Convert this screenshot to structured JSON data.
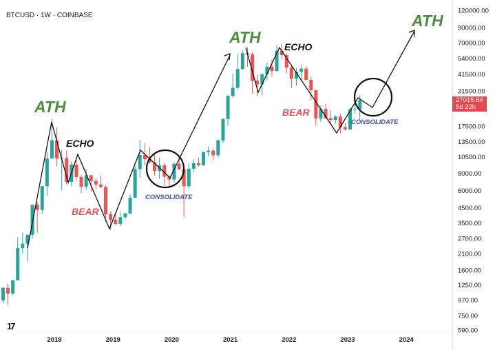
{
  "header": {
    "symbol_title": "BTCUSD · 1W · COINBASE"
  },
  "price_tag": {
    "price": "27015.64",
    "countdown": "5d 22h",
    "color": "#e2484f"
  },
  "chart_data": {
    "type": "candlestick",
    "title": "BTCUSD · 1W · COINBASE",
    "y_scale": "log",
    "ylim": [
      560,
      120000
    ],
    "xlim": [
      "2017-02",
      "2024-08"
    ],
    "grid": false,
    "y_ticks": [
      "120000.00",
      "90000.00",
      "70000.00",
      "54000.00",
      "41500.00",
      "31500.00",
      "17500.00",
      "13500.00",
      "10500.00",
      "8000.00",
      "6000.00",
      "4500.00",
      "3500.00",
      "2700.00",
      "2100.00",
      "1600.00",
      "1250.00",
      "970.00",
      "750.00",
      "590.00"
    ],
    "x_ticks": [
      "2018",
      "2019",
      "2020",
      "2021",
      "2022",
      "2023",
      "2024"
    ],
    "colors": {
      "up": "#26a69a",
      "down": "#ef5350"
    },
    "candles_fields": [
      "date",
      "open",
      "high",
      "low",
      "close"
    ],
    "candles": [
      [
        "2017-02",
        965,
        1200,
        920,
        1190
      ],
      [
        "2017-03",
        1190,
        1280,
        890,
        1080
      ],
      [
        "2017-04",
        1080,
        1350,
        1060,
        1350
      ],
      [
        "2017-05",
        1350,
        2760,
        1350,
        2300
      ],
      [
        "2017-06",
        2300,
        2980,
        2100,
        2480
      ],
      [
        "2017-07",
        2480,
        2900,
        1840,
        2870
      ],
      [
        "2017-08",
        2870,
        4750,
        2700,
        4730
      ],
      [
        "2017-09",
        4730,
        4980,
        2980,
        4340
      ],
      [
        "2017-10",
        4340,
        6450,
        4100,
        6450
      ],
      [
        "2017-11",
        6450,
        11400,
        5500,
        10200
      ],
      [
        "2017-12",
        10200,
        19800,
        10200,
        13850
      ],
      [
        "2018-01",
        13850,
        17200,
        9000,
        10200
      ],
      [
        "2018-02",
        10200,
        11800,
        6000,
        10300
      ],
      [
        "2018-03",
        10300,
        11700,
        6600,
        6920
      ],
      [
        "2018-04",
        6920,
        9750,
        6430,
        9240
      ],
      [
        "2018-05",
        9240,
        9990,
        7050,
        7500
      ],
      [
        "2018-06",
        7500,
        7770,
        5750,
        6400
      ],
      [
        "2018-07",
        6400,
        8500,
        6070,
        7730
      ],
      [
        "2018-08",
        7730,
        7760,
        5880,
        7010
      ],
      [
        "2018-09",
        7010,
        7400,
        6100,
        6630
      ],
      [
        "2018-10",
        6630,
        7680,
        6200,
        6370
      ],
      [
        "2018-11",
        6370,
        6570,
        3550,
        4040
      ],
      [
        "2018-12",
        4040,
        4240,
        3120,
        3690
      ],
      [
        "2019-01",
        3690,
        4100,
        3350,
        3440
      ],
      [
        "2019-02",
        3440,
        4200,
        3330,
        3850
      ],
      [
        "2019-03",
        3850,
        4130,
        3720,
        4100
      ],
      [
        "2019-04",
        4100,
        5600,
        4050,
        5320
      ],
      [
        "2019-05",
        5320,
        9000,
        5300,
        8560
      ],
      [
        "2019-06",
        8560,
        13880,
        7450,
        10820
      ],
      [
        "2019-07",
        10820,
        13200,
        9070,
        10080
      ],
      [
        "2019-08",
        10080,
        12330,
        9350,
        9600
      ],
      [
        "2019-09",
        9600,
        10900,
        7700,
        8300
      ],
      [
        "2019-10",
        8300,
        10400,
        7300,
        9150
      ],
      [
        "2019-11",
        9150,
        9500,
        6500,
        7550
      ],
      [
        "2019-12",
        7550,
        7750,
        6430,
        7200
      ],
      [
        "2020-01",
        7200,
        9600,
        6870,
        9350
      ],
      [
        "2020-02",
        9350,
        10500,
        8450,
        8550
      ],
      [
        "2020-03",
        8550,
        9200,
        3850,
        6440
      ],
      [
        "2020-04",
        6440,
        9480,
        6150,
        8630
      ],
      [
        "2020-05",
        8630,
        10070,
        8100,
        9450
      ],
      [
        "2020-06",
        9450,
        10400,
        8900,
        9140
      ],
      [
        "2020-07",
        9140,
        11450,
        9050,
        11350
      ],
      [
        "2020-08",
        11350,
        12480,
        10600,
        11650
      ],
      [
        "2020-09",
        11650,
        12050,
        9850,
        10780
      ],
      [
        "2020-10",
        10780,
        14100,
        10400,
        13800
      ],
      [
        "2020-11",
        13800,
        19900,
        13200,
        19700
      ],
      [
        "2020-12",
        19700,
        29300,
        17600,
        28990
      ],
      [
        "2021-01",
        28990,
        41950,
        28130,
        33110
      ],
      [
        "2021-02",
        33110,
        58350,
        32300,
        45200
      ],
      [
        "2021-03",
        45200,
        61800,
        44950,
        58800
      ],
      [
        "2021-04",
        58800,
        64850,
        47000,
        57700
      ],
      [
        "2021-05",
        57700,
        59600,
        30000,
        37300
      ],
      [
        "2021-06",
        37300,
        41300,
        28800,
        35040
      ],
      [
        "2021-07",
        35040,
        42300,
        29300,
        41460
      ],
      [
        "2021-08",
        41460,
        50500,
        37300,
        47100
      ],
      [
        "2021-09",
        47100,
        52900,
        39600,
        43800
      ],
      [
        "2021-10",
        43800,
        67000,
        43300,
        61300
      ],
      [
        "2021-11",
        61300,
        69000,
        53300,
        57000
      ],
      [
        "2021-12",
        57000,
        59100,
        42000,
        46300
      ],
      [
        "2022-01",
        46300,
        47990,
        32900,
        38500
      ],
      [
        "2022-02",
        38500,
        45800,
        34300,
        43200
      ],
      [
        "2022-03",
        43200,
        48200,
        37200,
        45500
      ],
      [
        "2022-04",
        45500,
        47400,
        37600,
        37700
      ],
      [
        "2022-05",
        37700,
        40000,
        26700,
        31800
      ],
      [
        "2022-06",
        31800,
        31900,
        17600,
        19900
      ],
      [
        "2022-07",
        19900,
        24650,
        18800,
        23300
      ],
      [
        "2022-08",
        23300,
        25200,
        19600,
        20000
      ],
      [
        "2022-09",
        20000,
        22800,
        18150,
        19400
      ],
      [
        "2022-10",
        19400,
        21000,
        18200,
        20500
      ],
      [
        "2022-11",
        20500,
        21450,
        15500,
        17150
      ],
      [
        "2022-12",
        17150,
        18400,
        16300,
        16550
      ],
      [
        "2023-01",
        16550,
        23950,
        16500,
        23140
      ],
      [
        "2023-02",
        23140,
        25250,
        21400,
        23150
      ],
      [
        "2023-03",
        23150,
        29200,
        19550,
        27016
      ]
    ],
    "annotations": {
      "ath_labels": [
        "ATH",
        "ATH",
        "ATH"
      ],
      "echo_labels": [
        "ECHO",
        "ECHO"
      ],
      "bear_labels": [
        "BEAR",
        "BEAR"
      ],
      "consolidate_labels": [
        "CONSOLIDATE",
        "CONSOLIDATE"
      ],
      "colors": {
        "ath": "#4a8f3a",
        "echo": "#111111",
        "bear": "#e0525a",
        "consolidate": "#3b4fb0"
      }
    }
  }
}
